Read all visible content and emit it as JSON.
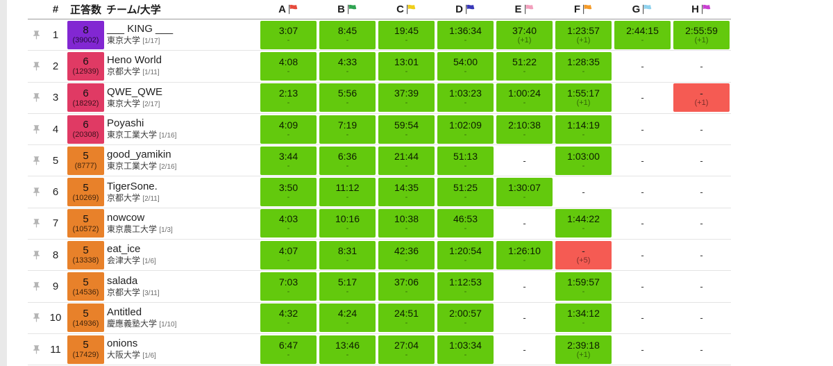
{
  "header": {
    "rank_label": "#",
    "solved_label": "正答数",
    "team_label": "チーム/大学",
    "problems": [
      {
        "label": "A",
        "flag_color": "#E64A3C"
      },
      {
        "label": "B",
        "flag_color": "#2FA351"
      },
      {
        "label": "C",
        "flag_color": "#EFCE1B"
      },
      {
        "label": "D",
        "flag_color": "#3838B8"
      },
      {
        "label": "E",
        "flag_color": "#F2A0BD"
      },
      {
        "label": "F",
        "flag_color": "#F59B28"
      },
      {
        "label": "G",
        "flag_color": "#8FD2EE"
      },
      {
        "label": "H",
        "flag_color": "#C940D2"
      }
    ]
  },
  "colors": {
    "ac_green": "#63C90D",
    "wa_red": "#F55B53",
    "tier_purple": "#8227D2",
    "tier_pink": "#E03A64",
    "tier_orange": "#E8812A",
    "pin_gray": "#B5B5B5"
  },
  "rows": [
    {
      "rank": "1",
      "solved": "8",
      "penalty": "(39002)",
      "tier": "purple",
      "team": "___ KING ___",
      "university": "東京大学",
      "bracket": "[1/17]",
      "cells": [
        {
          "state": "ac",
          "time": "3:07",
          "tries": "-"
        },
        {
          "state": "ac",
          "time": "8:45",
          "tries": "-"
        },
        {
          "state": "ac",
          "time": "19:45",
          "tries": "-"
        },
        {
          "state": "ac",
          "time": "1:36:34",
          "tries": "-"
        },
        {
          "state": "ac",
          "time": "37:40",
          "tries": "(+1)"
        },
        {
          "state": "ac",
          "time": "1:23:57",
          "tries": "(+1)"
        },
        {
          "state": "ac",
          "time": "2:44:15",
          "tries": "-"
        },
        {
          "state": "ac",
          "time": "2:55:59",
          "tries": "(+1)"
        }
      ]
    },
    {
      "rank": "2",
      "solved": "6",
      "penalty": "(12939)",
      "tier": "pink",
      "team": "Heno World",
      "university": "京都大学",
      "bracket": "[1/11]",
      "cells": [
        {
          "state": "ac",
          "time": "4:08",
          "tries": "-"
        },
        {
          "state": "ac",
          "time": "4:33",
          "tries": "-"
        },
        {
          "state": "ac",
          "time": "13:01",
          "tries": "-"
        },
        {
          "state": "ac",
          "time": "54:00",
          "tries": "-"
        },
        {
          "state": "ac",
          "time": "51:22",
          "tries": "-"
        },
        {
          "state": "ac",
          "time": "1:28:35",
          "tries": "-"
        },
        {
          "state": "none"
        },
        {
          "state": "none"
        }
      ]
    },
    {
      "rank": "3",
      "solved": "6",
      "penalty": "(18292)",
      "tier": "pink",
      "team": "QWE_QWE",
      "university": "東京大学",
      "bracket": "[2/17]",
      "cells": [
        {
          "state": "ac",
          "time": "2:13",
          "tries": "-"
        },
        {
          "state": "ac",
          "time": "5:56",
          "tries": "-"
        },
        {
          "state": "ac",
          "time": "37:39",
          "tries": "-"
        },
        {
          "state": "ac",
          "time": "1:03:23",
          "tries": "-"
        },
        {
          "state": "ac",
          "time": "1:00:24",
          "tries": "-"
        },
        {
          "state": "ac",
          "time": "1:55:17",
          "tries": "(+1)"
        },
        {
          "state": "none"
        },
        {
          "state": "wa",
          "time": "-",
          "tries": "(+1)"
        }
      ]
    },
    {
      "rank": "4",
      "solved": "6",
      "penalty": "(20308)",
      "tier": "pink",
      "team": "Poyashi",
      "university": "東京工業大学",
      "bracket": "[1/16]",
      "cells": [
        {
          "state": "ac",
          "time": "4:09",
          "tries": "-"
        },
        {
          "state": "ac",
          "time": "7:19",
          "tries": "-"
        },
        {
          "state": "ac",
          "time": "59:54",
          "tries": "-"
        },
        {
          "state": "ac",
          "time": "1:02:09",
          "tries": "-"
        },
        {
          "state": "ac",
          "time": "2:10:38",
          "tries": "-"
        },
        {
          "state": "ac",
          "time": "1:14:19",
          "tries": "-"
        },
        {
          "state": "none"
        },
        {
          "state": "none"
        }
      ]
    },
    {
      "rank": "5",
      "solved": "5",
      "penalty": "(8777)",
      "tier": "orange",
      "team": "good_yamikin",
      "university": "東京工業大学",
      "bracket": "[2/16]",
      "cells": [
        {
          "state": "ac",
          "time": "3:44",
          "tries": "-"
        },
        {
          "state": "ac",
          "time": "6:36",
          "tries": "-"
        },
        {
          "state": "ac",
          "time": "21:44",
          "tries": "-"
        },
        {
          "state": "ac",
          "time": "51:13",
          "tries": "-"
        },
        {
          "state": "none"
        },
        {
          "state": "ac",
          "time": "1:03:00",
          "tries": "-"
        },
        {
          "state": "none"
        },
        {
          "state": "none"
        }
      ]
    },
    {
      "rank": "6",
      "solved": "5",
      "penalty": "(10269)",
      "tier": "orange",
      "team": "TigerSone.",
      "university": "京都大学",
      "bracket": "[2/11]",
      "cells": [
        {
          "state": "ac",
          "time": "3:50",
          "tries": "-"
        },
        {
          "state": "ac",
          "time": "11:12",
          "tries": "-"
        },
        {
          "state": "ac",
          "time": "14:35",
          "tries": "-"
        },
        {
          "state": "ac",
          "time": "51:25",
          "tries": "-"
        },
        {
          "state": "ac",
          "time": "1:30:07",
          "tries": "-"
        },
        {
          "state": "none"
        },
        {
          "state": "none"
        },
        {
          "state": "none"
        }
      ]
    },
    {
      "rank": "7",
      "solved": "5",
      "penalty": "(10572)",
      "tier": "orange",
      "team": "nowcow",
      "university": "東京農工大学",
      "bracket": "[1/3]",
      "cells": [
        {
          "state": "ac",
          "time": "4:03",
          "tries": "-"
        },
        {
          "state": "ac",
          "time": "10:16",
          "tries": "-"
        },
        {
          "state": "ac",
          "time": "10:38",
          "tries": "-"
        },
        {
          "state": "ac",
          "time": "46:53",
          "tries": "-"
        },
        {
          "state": "none"
        },
        {
          "state": "ac",
          "time": "1:44:22",
          "tries": "-"
        },
        {
          "state": "none"
        },
        {
          "state": "none"
        }
      ]
    },
    {
      "rank": "8",
      "solved": "5",
      "penalty": "(13338)",
      "tier": "orange",
      "team": "eat_ice",
      "university": "会津大学",
      "bracket": "[1/6]",
      "cells": [
        {
          "state": "ac",
          "time": "4:07",
          "tries": "-"
        },
        {
          "state": "ac",
          "time": "8:31",
          "tries": "-"
        },
        {
          "state": "ac",
          "time": "42:36",
          "tries": "-"
        },
        {
          "state": "ac",
          "time": "1:20:54",
          "tries": "-"
        },
        {
          "state": "ac",
          "time": "1:26:10",
          "tries": "-"
        },
        {
          "state": "wa",
          "time": "-",
          "tries": "(+5)"
        },
        {
          "state": "none"
        },
        {
          "state": "none"
        }
      ]
    },
    {
      "rank": "9",
      "solved": "5",
      "penalty": "(14536)",
      "tier": "orange",
      "team": "salada",
      "university": "京都大学",
      "bracket": "[3/11]",
      "cells": [
        {
          "state": "ac",
          "time": "7:03",
          "tries": "-"
        },
        {
          "state": "ac",
          "time": "5:17",
          "tries": "-"
        },
        {
          "state": "ac",
          "time": "37:06",
          "tries": "-"
        },
        {
          "state": "ac",
          "time": "1:12:53",
          "tries": "-"
        },
        {
          "state": "none"
        },
        {
          "state": "ac",
          "time": "1:59:57",
          "tries": "-"
        },
        {
          "state": "none"
        },
        {
          "state": "none"
        }
      ]
    },
    {
      "rank": "10",
      "solved": "5",
      "penalty": "(14936)",
      "tier": "orange",
      "team": "Antitled",
      "university": "慶應義塾大学",
      "bracket": "[1/10]",
      "cells": [
        {
          "state": "ac",
          "time": "4:32",
          "tries": "-"
        },
        {
          "state": "ac",
          "time": "4:24",
          "tries": "-"
        },
        {
          "state": "ac",
          "time": "24:51",
          "tries": "-"
        },
        {
          "state": "ac",
          "time": "2:00:57",
          "tries": "-"
        },
        {
          "state": "none"
        },
        {
          "state": "ac",
          "time": "1:34:12",
          "tries": "-"
        },
        {
          "state": "none"
        },
        {
          "state": "none"
        }
      ]
    },
    {
      "rank": "11",
      "solved": "5",
      "penalty": "(17429)",
      "tier": "orange",
      "team": "onions",
      "university": "大阪大学",
      "bracket": "[1/6]",
      "cells": [
        {
          "state": "ac",
          "time": "6:47",
          "tries": "-"
        },
        {
          "state": "ac",
          "time": "13:46",
          "tries": "-"
        },
        {
          "state": "ac",
          "time": "27:04",
          "tries": "-"
        },
        {
          "state": "ac",
          "time": "1:03:34",
          "tries": "-"
        },
        {
          "state": "none"
        },
        {
          "state": "ac",
          "time": "2:39:18",
          "tries": "(+1)"
        },
        {
          "state": "none"
        },
        {
          "state": "none"
        }
      ]
    }
  ]
}
